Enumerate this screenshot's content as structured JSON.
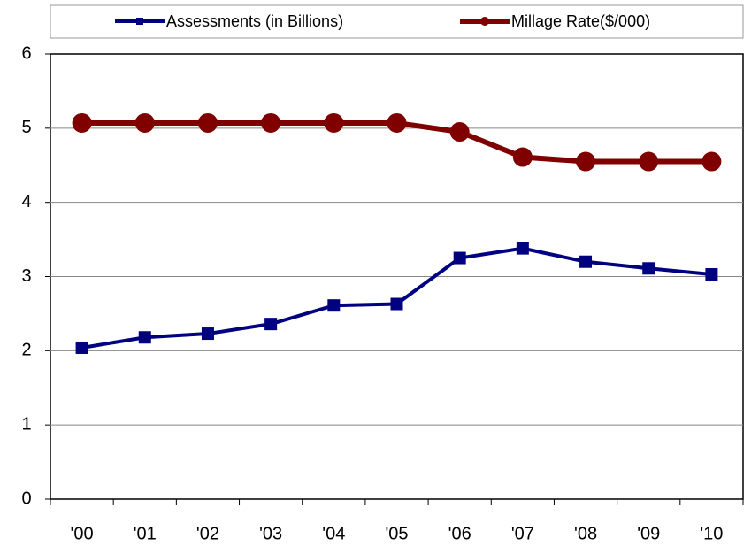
{
  "chart_data": {
    "type": "line",
    "categories": [
      "'00",
      "'01",
      "'02",
      "'03",
      "'04",
      "'05",
      "'06",
      "'07",
      "'08",
      "'09",
      "'10"
    ],
    "series": [
      {
        "name": "Assessments (in Billions)",
        "color": "#000080",
        "marker": "square",
        "values": [
          2.04,
          2.18,
          2.23,
          2.36,
          2.61,
          2.63,
          3.25,
          3.38,
          3.2,
          3.11,
          3.03
        ]
      },
      {
        "name": "Millage Rate($/000)",
        "color": "#800000",
        "marker": "circle",
        "values": [
          5.07,
          5.07,
          5.07,
          5.07,
          5.07,
          5.07,
          4.95,
          4.61,
          4.55,
          4.55,
          4.55
        ]
      }
    ],
    "ylim": [
      0,
      6
    ],
    "yticks": [
      0,
      1,
      2,
      3,
      4,
      5,
      6
    ],
    "grid": true
  }
}
